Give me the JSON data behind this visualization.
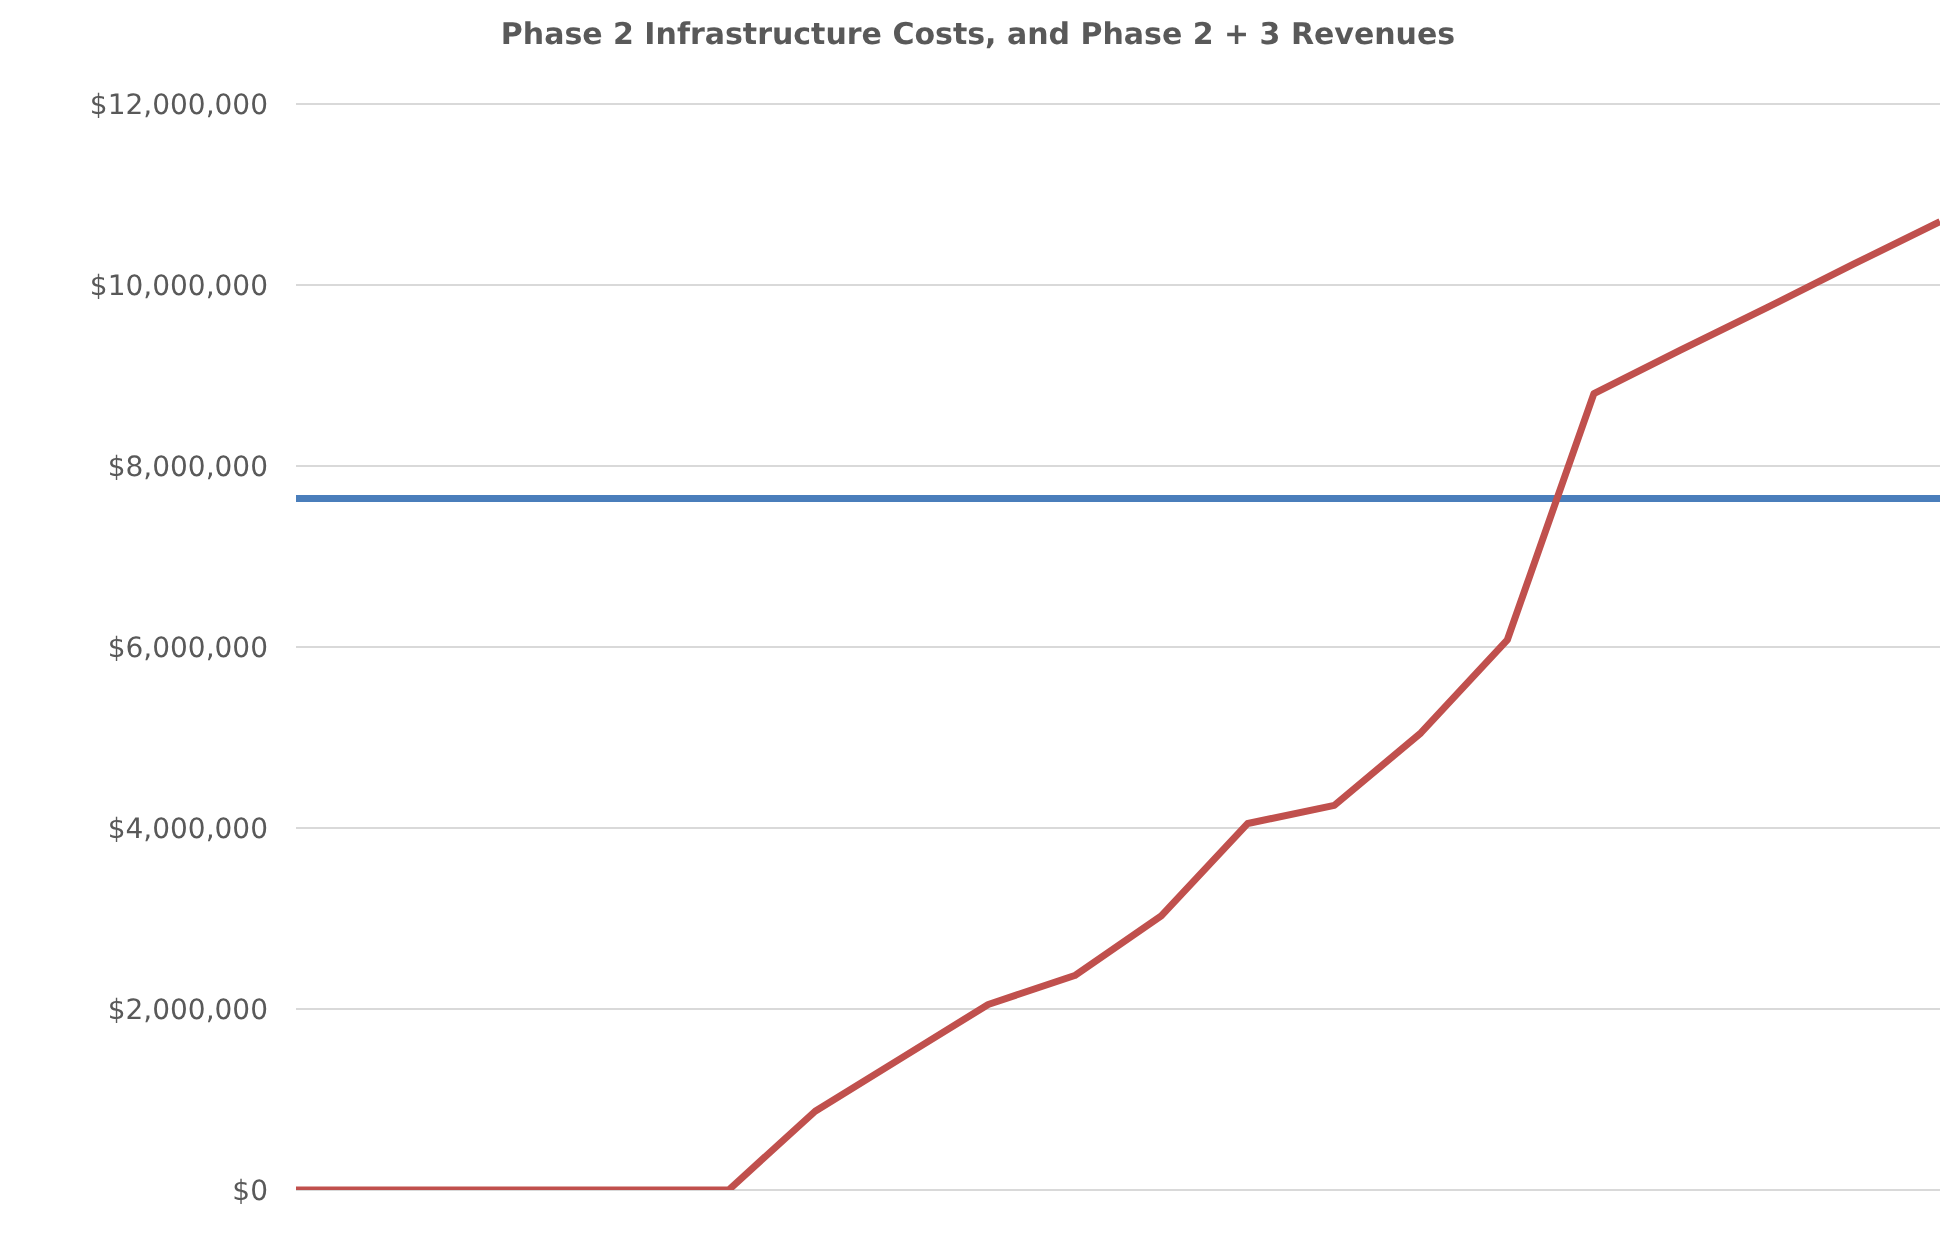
{
  "chart_data": {
    "type": "line",
    "title": "Phase 2 Infrastructure Costs, and Phase 2 + 3 Revenues",
    "categories": [
      null,
      null,
      null,
      null,
      null,
      null,
      null,
      null,
      null,
      null,
      null,
      null,
      null,
      null,
      null,
      null,
      null,
      null,
      null,
      null
    ],
    "series": [
      {
        "color": "#4a7ebb",
        "values": [
          7640000,
          7640000,
          7640000,
          7640000,
          7640000,
          7640000,
          7640000,
          7640000,
          7640000,
          7640000,
          7640000,
          7640000,
          7640000,
          7640000,
          7640000,
          7640000,
          7640000,
          7640000,
          7640000,
          7640000
        ]
      },
      {
        "color": "#c0504d",
        "values": [
          0,
          0,
          0,
          0,
          0,
          0,
          870000,
          1460000,
          2050000,
          2370000,
          3030000,
          4050000,
          4250000,
          5050000,
          6080000,
          8800000,
          9280000,
          9750000,
          10230000,
          10700000
        ]
      }
    ],
    "ylim": [
      0,
      12000000
    ],
    "yticks": [
      {
        "value": 0,
        "label": "$0"
      },
      {
        "value": 2000000,
        "label": "$2,000,000"
      },
      {
        "value": 4000000,
        "label": "$4,000,000"
      },
      {
        "value": 6000000,
        "label": "$6,000,000"
      },
      {
        "value": 8000000,
        "label": "$8,000,000"
      },
      {
        "value": 10000000,
        "label": "$10,000,000"
      },
      {
        "value": 12000000,
        "label": "$12,000,000"
      }
    ],
    "grid": "y",
    "tick_labels": "y",
    "marker": "none",
    "line_style": "solid"
  }
}
